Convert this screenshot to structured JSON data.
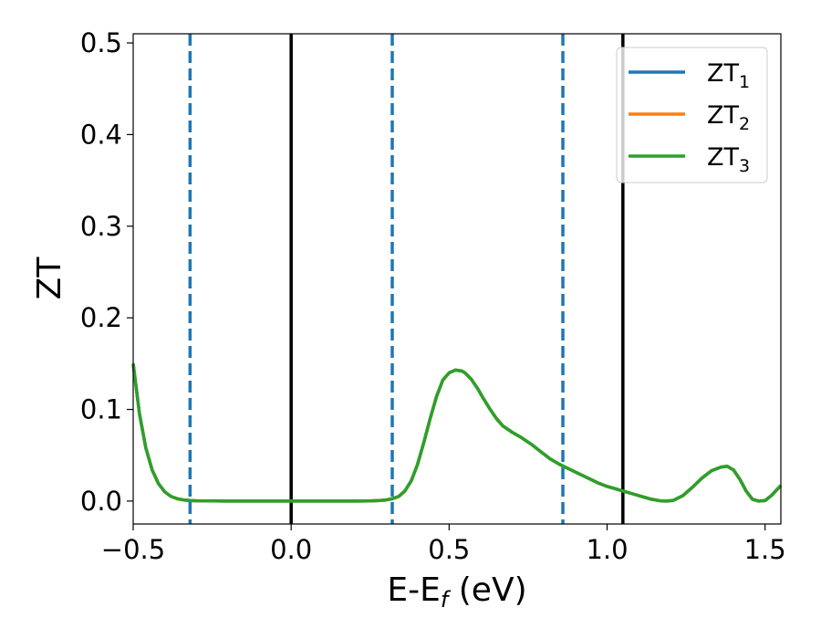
{
  "chart_data": {
    "type": "line",
    "xlabel": {
      "main": "E-E",
      "sub": "f",
      "unit": " (eV)"
    },
    "ylabel": "ZT",
    "xlim": [
      -0.5,
      1.55
    ],
    "ylim": [
      -0.025,
      0.51
    ],
    "x_ticks": [
      -0.5,
      0.0,
      0.5,
      1.0,
      1.5
    ],
    "x_tick_labels": [
      "−0.5",
      "0.0",
      "0.5",
      "1.0",
      "1.5"
    ],
    "y_ticks": [
      0.0,
      0.1,
      0.2,
      0.3,
      0.4,
      0.5
    ],
    "y_tick_labels": [
      "0.0",
      "0.1",
      "0.2",
      "0.3",
      "0.4",
      "0.5"
    ],
    "grid": false,
    "legend_position": "top-right",
    "series": [
      {
        "name": "ZT",
        "name_sub": "1",
        "color": "#1f77b4",
        "x": [
          -0.5,
          -0.48,
          -0.46,
          -0.44,
          -0.42,
          -0.4,
          -0.38,
          -0.36,
          -0.34,
          -0.32,
          -0.3,
          -0.25,
          -0.2,
          -0.1,
          0.0,
          0.1,
          0.2,
          0.25,
          0.28,
          0.3,
          0.32,
          0.34,
          0.36,
          0.38,
          0.4,
          0.42,
          0.44,
          0.46,
          0.48,
          0.5,
          0.52,
          0.54,
          0.55,
          0.57,
          0.59,
          0.61,
          0.63,
          0.65,
          0.67,
          0.7,
          0.73,
          0.76,
          0.79,
          0.82,
          0.85,
          0.88,
          0.91,
          0.94,
          0.97,
          1.0,
          1.03,
          1.05,
          1.08,
          1.11,
          1.14,
          1.17,
          1.19,
          1.21,
          1.24,
          1.27,
          1.3,
          1.33,
          1.36,
          1.38,
          1.4,
          1.42,
          1.44,
          1.46,
          1.48,
          1.5,
          1.52,
          1.55
        ],
        "y": [
          0.15,
          0.095,
          0.058,
          0.034,
          0.019,
          0.01,
          0.005,
          0.0025,
          0.0012,
          0.0006,
          0.0003,
          0.0001,
          0.0,
          0.0,
          0.0,
          0.0,
          0.0,
          0.0002,
          0.0006,
          0.0012,
          0.0025,
          0.005,
          0.011,
          0.022,
          0.04,
          0.064,
          0.09,
          0.114,
          0.132,
          0.14,
          0.143,
          0.142,
          0.14,
          0.133,
          0.123,
          0.111,
          0.1,
          0.09,
          0.082,
          0.075,
          0.069,
          0.062,
          0.054,
          0.046,
          0.04,
          0.035,
          0.03,
          0.025,
          0.02,
          0.016,
          0.013,
          0.011,
          0.008,
          0.005,
          0.002,
          0.0002,
          0.0,
          0.0008,
          0.006,
          0.015,
          0.025,
          0.033,
          0.037,
          0.038,
          0.034,
          0.024,
          0.011,
          0.002,
          0.0,
          0.0005,
          0.006,
          0.017
        ]
      },
      {
        "name": "ZT",
        "name_sub": "2",
        "color": "#ff7f0e",
        "x": [
          -0.5,
          -0.48,
          -0.46,
          -0.44,
          -0.42,
          -0.4,
          -0.38,
          -0.36,
          -0.34,
          -0.32,
          -0.3,
          -0.25,
          -0.2,
          -0.1,
          0.0,
          0.1,
          0.2,
          0.25,
          0.28,
          0.3,
          0.32,
          0.34,
          0.36,
          0.38,
          0.4,
          0.42,
          0.44,
          0.46,
          0.48,
          0.5,
          0.52,
          0.54,
          0.55,
          0.57,
          0.59,
          0.61,
          0.63,
          0.65,
          0.67,
          0.7,
          0.73,
          0.76,
          0.79,
          0.82,
          0.85,
          0.88,
          0.91,
          0.94,
          0.97,
          1.0,
          1.03,
          1.05,
          1.08,
          1.11,
          1.14,
          1.17,
          1.19,
          1.21,
          1.24,
          1.27,
          1.3,
          1.33,
          1.36,
          1.38,
          1.4,
          1.42,
          1.44,
          1.46,
          1.48,
          1.5,
          1.52,
          1.55
        ],
        "y": [
          0.15,
          0.095,
          0.058,
          0.034,
          0.019,
          0.01,
          0.005,
          0.0025,
          0.0012,
          0.0006,
          0.0003,
          0.0001,
          0.0,
          0.0,
          0.0,
          0.0,
          0.0,
          0.0002,
          0.0006,
          0.0012,
          0.0025,
          0.005,
          0.011,
          0.022,
          0.04,
          0.064,
          0.09,
          0.114,
          0.132,
          0.14,
          0.143,
          0.142,
          0.14,
          0.133,
          0.123,
          0.111,
          0.1,
          0.09,
          0.082,
          0.075,
          0.069,
          0.062,
          0.054,
          0.046,
          0.04,
          0.035,
          0.03,
          0.025,
          0.02,
          0.016,
          0.013,
          0.011,
          0.008,
          0.005,
          0.002,
          0.0002,
          0.0,
          0.0008,
          0.006,
          0.015,
          0.025,
          0.033,
          0.037,
          0.038,
          0.034,
          0.024,
          0.011,
          0.002,
          0.0,
          0.0005,
          0.006,
          0.017
        ]
      },
      {
        "name": "ZT",
        "name_sub": "3",
        "color": "#2ca02c",
        "x": [
          -0.5,
          -0.48,
          -0.46,
          -0.44,
          -0.42,
          -0.4,
          -0.38,
          -0.36,
          -0.34,
          -0.32,
          -0.3,
          -0.25,
          -0.2,
          -0.1,
          0.0,
          0.1,
          0.2,
          0.25,
          0.28,
          0.3,
          0.32,
          0.34,
          0.36,
          0.38,
          0.4,
          0.42,
          0.44,
          0.46,
          0.48,
          0.5,
          0.52,
          0.54,
          0.55,
          0.57,
          0.59,
          0.61,
          0.63,
          0.65,
          0.67,
          0.7,
          0.73,
          0.76,
          0.79,
          0.82,
          0.85,
          0.88,
          0.91,
          0.94,
          0.97,
          1.0,
          1.03,
          1.05,
          1.08,
          1.11,
          1.14,
          1.17,
          1.19,
          1.21,
          1.24,
          1.27,
          1.3,
          1.33,
          1.36,
          1.38,
          1.4,
          1.42,
          1.44,
          1.46,
          1.48,
          1.5,
          1.52,
          1.55
        ],
        "y": [
          0.15,
          0.095,
          0.058,
          0.034,
          0.019,
          0.01,
          0.005,
          0.0025,
          0.0012,
          0.0006,
          0.0003,
          0.0001,
          0.0,
          0.0,
          0.0,
          0.0,
          0.0,
          0.0002,
          0.0006,
          0.0012,
          0.0025,
          0.005,
          0.011,
          0.022,
          0.04,
          0.064,
          0.09,
          0.114,
          0.132,
          0.14,
          0.143,
          0.142,
          0.14,
          0.133,
          0.123,
          0.111,
          0.1,
          0.09,
          0.082,
          0.075,
          0.069,
          0.062,
          0.054,
          0.046,
          0.04,
          0.035,
          0.03,
          0.025,
          0.02,
          0.016,
          0.013,
          0.011,
          0.008,
          0.005,
          0.002,
          0.0002,
          0.0,
          0.0008,
          0.006,
          0.015,
          0.025,
          0.033,
          0.037,
          0.038,
          0.034,
          0.024,
          0.011,
          0.002,
          0.0,
          0.0005,
          0.006,
          0.017
        ]
      }
    ],
    "vertical_lines": [
      {
        "x": 0.0,
        "style": "solid",
        "color": "#000000"
      },
      {
        "x": 1.05,
        "style": "solid",
        "color": "#000000"
      },
      {
        "x": -0.32,
        "style": "dashed",
        "color": "#1f77b4"
      },
      {
        "x": 0.32,
        "style": "dashed",
        "color": "#1f77b4"
      },
      {
        "x": 0.86,
        "style": "dashed",
        "color": "#1f77b4"
      }
    ]
  }
}
